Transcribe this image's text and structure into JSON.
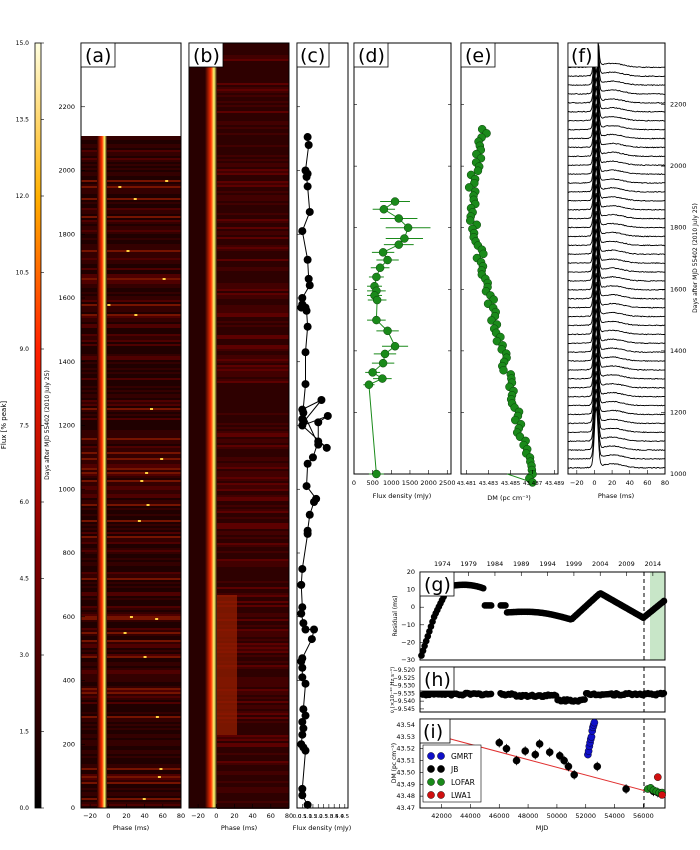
{
  "colorbar": {
    "label": "Flux [% peak]",
    "ticks": [
      "0.0",
      "1.5",
      "3.0",
      "4.5",
      "6.0",
      "7.5",
      "9.0",
      "10.5",
      "12.0",
      "13.5",
      "15.0"
    ],
    "vmin": 0,
    "vmax": 15
  },
  "shared_y": {
    "label": "Days after MJD 55402 (2010 July 25)",
    "range": [
      1000,
      2400
    ],
    "ticks": [
      "1000",
      "1200",
      "1400",
      "1600",
      "1800",
      "2000",
      "2200"
    ]
  },
  "panels": {
    "a": {
      "tag": "(a)",
      "xlabel": "Phase (ms)",
      "xticks": [
        "−20",
        "0",
        "20",
        "40",
        "60",
        "80"
      ],
      "xlim": [
        -30,
        80
      ],
      "ylim": [
        0,
        2400
      ],
      "yticks": [
        "0",
        "200",
        "400",
        "600",
        "800",
        "1000",
        "1200",
        "1400",
        "1600",
        "1800",
        "2000",
        "2200"
      ],
      "ylabel": "Days after MJD 55402 (2010 July 25)"
    },
    "b": {
      "tag": "(b)",
      "xlabel": "Phase (ms)",
      "xticks": [
        "−20",
        "0",
        "20",
        "40",
        "60",
        "80"
      ],
      "xlim": [
        -30,
        80
      ]
    },
    "c": {
      "tag": "(c)",
      "xlabel": "Flux density (mJy)",
      "xticks": [
        "0.0",
        "0.5",
        "1.0",
        "1.5",
        "2.0",
        "2.5",
        "3.0",
        "3.5",
        "4.0",
        "4.5"
      ]
    },
    "d": {
      "tag": "(d)",
      "xlabel": "Flux density (mJy)",
      "xticks": [
        "0",
        "500",
        "1000",
        "1500",
        "2000",
        "2500"
      ],
      "xlim": [
        0,
        2600
      ]
    },
    "e": {
      "tag": "(e)",
      "xlabel": "DM (pc cm⁻³)",
      "xticks": [
        "43.481",
        "43.483",
        "43.485",
        "43.487",
        "43.489"
      ]
    },
    "f": {
      "tag": "(f)",
      "xlabel": "Phase (ms)",
      "xticks": [
        "−20",
        "0",
        "20",
        "40",
        "60",
        "80"
      ],
      "xlim": [
        -30,
        80
      ],
      "ylabel": "Days after MJD 55402 (2010 July 25)"
    },
    "g": {
      "tag": "(g)",
      "ylabel": "Residual (ms)",
      "yticks": [
        "−30",
        "−20",
        "−10",
        "0",
        "10",
        "20"
      ],
      "ylim": [
        -30,
        20
      ],
      "top_ticks": [
        "1974",
        "1979",
        "1984",
        "1989",
        "1994",
        "1999",
        "2004",
        "2009",
        "2014"
      ]
    },
    "h": {
      "tag": "(h)",
      "ylabel": "ν̇ (×10⁻¹⁰ Hz s⁻¹)",
      "yticks": [
        "−9.545",
        "−9.540",
        "−9.535",
        "−9.530",
        "−9.525",
        "−9.520"
      ],
      "ylim": [
        -9.547,
        -9.518
      ]
    },
    "i": {
      "tag": "(i)",
      "ylabel": "DM (pc cm⁻³)",
      "xlabel": "MJD",
      "yticks": [
        "43.47",
        "43.48",
        "43.49",
        "43.50",
        "43.51",
        "43.52",
        "43.53",
        "43.54"
      ],
      "ylim": [
        43.47,
        43.545
      ],
      "xticks": [
        "42000",
        "44000",
        "46000",
        "48000",
        "50000",
        "52000",
        "54000",
        "56000"
      ],
      "xlim": [
        40500,
        57500
      ],
      "legend": [
        {
          "name": "GMRT",
          "color": "#1010c8"
        },
        {
          "name": "JB",
          "color": "#000000"
        },
        {
          "name": "LOFAR",
          "color": "#1a8a1a"
        },
        {
          "name": "LWA1",
          "color": "#d01010"
        }
      ]
    }
  },
  "chart_data": [
    {
      "type": "heatmap",
      "panel": "a",
      "description_axes": "phase vs days",
      "peak_phase_ms": [
        -2,
        8
      ]
    },
    {
      "type": "heatmap",
      "panel": "b",
      "peak_phase_ms": [
        -2,
        8
      ]
    },
    {
      "type": "scatter",
      "panel": "c",
      "x": [
        1.0,
        1.1,
        0.8,
        1.0,
        0.9,
        1.0,
        1.2,
        0.5,
        1.0,
        1.1,
        1.2,
        0.5,
        0.5,
        0.4,
        0.8,
        0.9,
        1.0,
        0.8,
        0.8,
        0.5,
        0.6,
        2.3,
        0.5,
        0.6,
        2.0,
        2.0,
        2.9,
        0.5,
        2.8,
        2.0,
        1.5,
        1.0,
        0.9,
        1.8,
        1.6,
        1.2,
        1.0,
        1.0,
        0.5,
        0.4,
        0.5,
        0.4,
        0.6,
        0.8,
        1.6,
        1.4,
        0.5,
        0.4,
        0.5,
        0.5,
        0.8,
        0.6,
        0.8,
        0.5,
        0.6,
        0.5,
        0.4,
        0.6,
        0.8,
        0.5,
        0.5,
        1.0
      ],
      "y": [
        2105,
        2080,
        2000,
        1990,
        1980,
        1950,
        1870,
        1810,
        1720,
        1660,
        1640,
        1600,
        1580,
        1570,
        1570,
        1560,
        1510,
        1430,
        1330,
        1220,
        1210,
        1280,
        1250,
        1240,
        1140,
        1210,
        1230,
        1200,
        1130,
        1150,
        1100,
        1080,
        1010,
        970,
        960,
        920,
        870,
        860,
        750,
        700,
        630,
        610,
        580,
        560,
        560,
        530,
        470,
        460,
        440,
        410,
        390,
        310,
        290,
        270,
        250,
        230,
        200,
        190,
        180,
        60,
        40,
        10
      ],
      "xlim": [
        0,
        4.8
      ]
    },
    {
      "type": "scatter",
      "panel": "d",
      "x": [
        1100,
        800,
        1200,
        1450,
        1350,
        1200,
        780,
        900,
        700,
        600,
        550,
        600,
        550,
        620,
        600,
        900,
        1100,
        830,
        780,
        500,
        760,
        400,
        600
      ],
      "y": [
        1885,
        1860,
        1830,
        1800,
        1765,
        1745,
        1720,
        1695,
        1670,
        1640,
        1610,
        1595,
        1580,
        1565,
        1500,
        1465,
        1415,
        1390,
        1360,
        1330,
        1310,
        1290,
        1000
      ],
      "xerr": [
        400,
        300,
        500,
        600,
        500,
        400,
        300,
        300,
        250,
        200,
        200,
        250,
        200,
        250,
        250,
        300,
        350,
        300,
        300,
        200,
        250,
        150,
        200
      ]
    },
    {
      "type": "scatter",
      "panel": "e",
      "x_unit": "DM",
      "xlim": [
        43.4805,
        43.4893
      ]
    },
    {
      "type": "line",
      "panel": "f",
      "description": "stacked pulse profiles",
      "count": 46
    },
    {
      "type": "scatter",
      "panel": "g",
      "x": [
        40500,
        57500
      ],
      "ylim": [
        -30,
        20
      ]
    },
    {
      "type": "scatter",
      "panel": "h",
      "ylim": [
        -9.547,
        -9.518
      ]
    },
    {
      "type": "scatter",
      "panel": "i",
      "series": [
        {
          "name": "GMRT",
          "x": [
            52150,
            52200,
            52250,
            52300,
            52350,
            52400,
            52450,
            52500,
            52550,
            52600
          ],
          "y": [
            43.515,
            43.518,
            43.522,
            43.525,
            43.528,
            43.53,
            43.535,
            43.538,
            43.54,
            43.542
          ]
        },
        {
          "name": "JB",
          "x": [
            46000,
            46500,
            47200,
            47800,
            48500,
            48800,
            49500,
            50200,
            50500,
            50800,
            51200,
            52800,
            54800,
            56700,
            57000,
            57200
          ],
          "y": [
            43.525,
            43.52,
            43.51,
            43.518,
            43.515,
            43.524,
            43.517,
            43.514,
            43.51,
            43.505,
            43.498,
            43.505,
            43.486,
            43.484,
            43.483,
            43.482
          ]
        },
        {
          "name": "LOFAR",
          "x": [
            56300,
            56500,
            56700,
            56900,
            57100,
            57300
          ],
          "y": [
            43.486,
            43.487,
            43.485,
            43.484,
            43.483,
            43.483
          ]
        },
        {
          "name": "LWA1",
          "x": [
            57000,
            57300
          ],
          "y": [
            43.496,
            43.481
          ]
        }
      ]
    }
  ]
}
